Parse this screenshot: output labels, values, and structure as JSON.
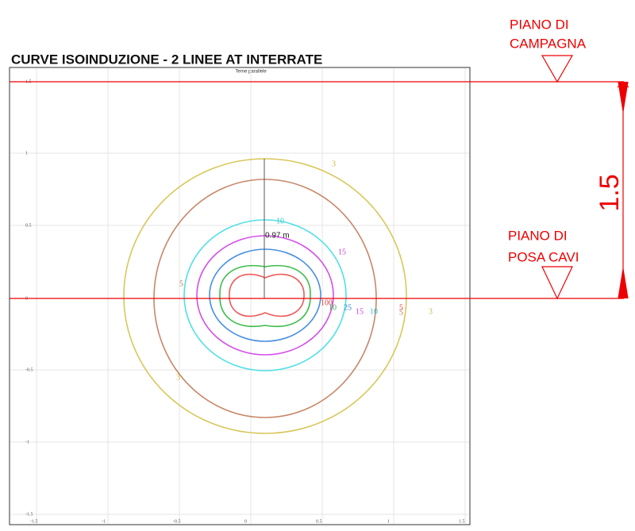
{
  "title": "CURVE ISOINDUZIONE - 2 LINEE AT INTERRATE",
  "plot": {
    "title": "Terne parallele",
    "x_ticks": [
      "-1.5",
      "-1",
      "-0.5",
      "0",
      "0.5",
      "1",
      "1.5"
    ],
    "y_ticks": [
      "1.5",
      "1",
      "0.5",
      "0",
      "-0.5",
      "-1",
      "-1.5"
    ],
    "contour_labels": [
      "3",
      "10",
      "15",
      "5",
      "100",
      "10",
      "25",
      "15",
      "10",
      "5",
      "5",
      "3",
      "3"
    ],
    "distance_label": "0.97 m"
  },
  "annotations": {
    "ground_level": [
      "PIANO DI",
      "CAMPAGNA"
    ],
    "cable_level": [
      "PIANO DI",
      "POSA CAVI"
    ],
    "depth": "1.5"
  }
}
